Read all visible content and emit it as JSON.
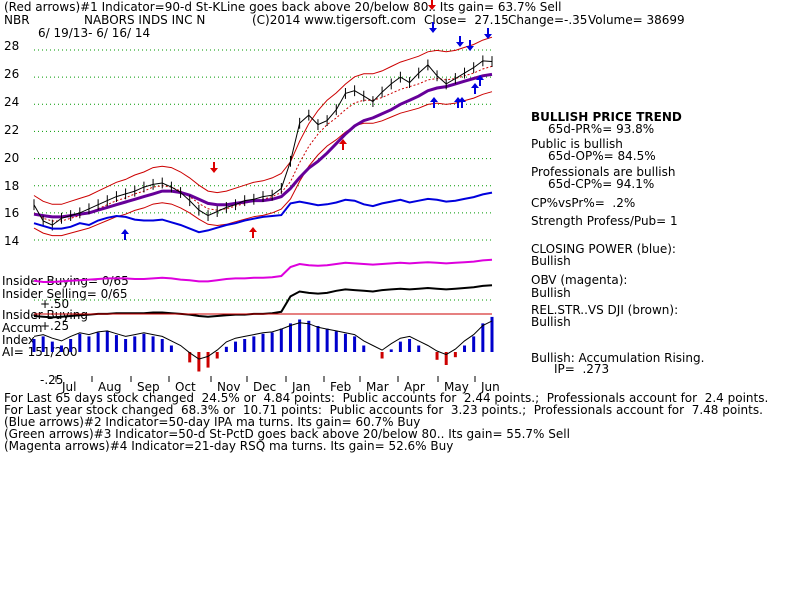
{
  "header": {
    "line1": "(Red arrows)#1 Indicator=90-d St-KLine goes back above 20/below 80.. Its gain= 63.7% Sell",
    "symbol": "NBR",
    "company": "NABORS INDS INC N",
    "copyright": "(C)2014 www.tigersoft.com",
    "close": "Close=  27.15",
    "change": "Change=-.35",
    "volume": "Volume= 38699",
    "daterange": "6/ 19/13- 6/ 16/ 14"
  },
  "chart_data": {
    "type": "line",
    "title": "NABORS INDS INC N",
    "x_months": [
      "Jul",
      "Aug",
      "Sep",
      "Oct",
      "Nov",
      "Dec",
      "Jan",
      "Feb",
      "Mar",
      "Apr",
      "May",
      "Jun"
    ],
    "ylim": [
      13,
      29
    ],
    "y_ticks": [
      "28",
      "26",
      "24",
      "22",
      "20",
      "18",
      "16",
      "14"
    ],
    "price_x": [
      0,
      5,
      10,
      15,
      20,
      25,
      30,
      35,
      40,
      45,
      50,
      55,
      60,
      65,
      70,
      75,
      80,
      85,
      90,
      95,
      100,
      105,
      110,
      115,
      120,
      125,
      130,
      135,
      140,
      145,
      150,
      155,
      160,
      165,
      170,
      175,
      180,
      185,
      190,
      195,
      200,
      205,
      210,
      215,
      220,
      225,
      230,
      235,
      240,
      245,
      250
    ],
    "price": [
      16.6,
      15.4,
      15.1,
      15.6,
      15.8,
      16.0,
      16.3,
      16.6,
      16.9,
      17.2,
      17.4,
      17.6,
      17.9,
      18.1,
      18.2,
      17.9,
      17.5,
      16.9,
      16.2,
      15.8,
      16.1,
      16.4,
      16.6,
      16.9,
      17.0,
      17.2,
      17.3,
      17.8,
      19.8,
      22.6,
      23.2,
      22.5,
      22.8,
      23.6,
      24.8,
      25.0,
      24.6,
      24.2,
      24.9,
      25.5,
      26.0,
      25.6,
      26.3,
      26.9,
      26.1,
      25.5,
      25.9,
      26.3,
      26.7,
      27.2,
      27.15
    ],
    "ma_50": [
      15.9,
      15.8,
      15.7,
      15.7,
      15.8,
      15.9,
      16.0,
      16.2,
      16.4,
      16.6,
      16.8,
      17.0,
      17.2,
      17.4,
      17.6,
      17.6,
      17.5,
      17.3,
      17.0,
      16.7,
      16.6,
      16.6,
      16.7,
      16.8,
      16.9,
      16.9,
      17.0,
      17.2,
      17.8,
      18.6,
      19.3,
      19.8,
      20.4,
      21.1,
      21.8,
      22.4,
      22.8,
      23.0,
      23.3,
      23.6,
      24.0,
      24.3,
      24.6,
      25.0,
      25.2,
      25.3,
      25.5,
      25.7,
      25.9,
      26.1,
      26.2
    ],
    "ma_21": [
      16.0,
      15.6,
      15.4,
      15.4,
      15.6,
      15.8,
      16.0,
      16.3,
      16.6,
      16.9,
      17.1,
      17.4,
      17.6,
      17.9,
      18.0,
      17.9,
      17.6,
      17.2,
      16.7,
      16.3,
      16.2,
      16.3,
      16.5,
      16.7,
      16.9,
      17.0,
      17.2,
      17.5,
      18.3,
      19.7,
      20.9,
      21.8,
      22.5,
      23.0,
      23.6,
      24.1,
      24.3,
      24.3,
      24.5,
      24.8,
      25.1,
      25.3,
      25.5,
      25.8,
      25.9,
      25.8,
      25.9,
      26.1,
      26.3,
      26.6,
      26.8
    ],
    "closing_power": [
      52,
      49,
      46,
      46,
      48,
      52,
      50,
      55,
      58,
      60,
      59,
      56,
      55,
      55,
      56,
      53,
      50,
      46,
      42,
      44,
      47,
      50,
      52,
      55,
      57,
      59,
      60,
      61,
      74,
      76,
      74,
      72,
      73,
      75,
      78,
      77,
      73,
      71,
      74,
      76,
      78,
      75,
      77,
      79,
      78,
      76,
      77,
      79,
      81,
      84,
      86
    ],
    "obv": [
      32,
      30,
      30,
      31,
      32,
      33,
      34,
      35,
      36,
      36,
      36,
      35,
      35,
      36,
      37,
      36,
      34,
      33,
      31,
      31,
      33,
      35,
      36,
      36,
      37,
      37,
      38,
      40,
      55,
      60,
      58,
      57,
      58,
      60,
      62,
      61,
      60,
      59,
      60,
      61,
      62,
      61,
      62,
      63,
      62,
      61,
      62,
      63,
      64,
      66,
      67
    ],
    "rel_str": [
      20,
      19,
      18,
      19,
      20,
      21,
      22,
      23,
      23,
      24,
      24,
      24,
      24,
      25,
      25,
      24,
      23,
      22,
      20,
      19,
      20,
      21,
      22,
      22,
      23,
      23,
      24,
      26,
      48,
      55,
      53,
      52,
      53,
      56,
      58,
      57,
      56,
      55,
      57,
      58,
      59,
      58,
      59,
      60,
      59,
      58,
      59,
      60,
      61,
      63,
      64
    ],
    "accum_labels": [
      "+.50",
      "+.25",
      "-.25"
    ],
    "accum_index": [
      0.1,
      0.12,
      0.08,
      0.05,
      0.1,
      0.14,
      0.12,
      0.15,
      0.16,
      0.13,
      0.1,
      0.12,
      0.14,
      0.12,
      0.1,
      0.05,
      0.0,
      -0.08,
      -0.15,
      -0.12,
      -0.05,
      0.04,
      0.08,
      0.1,
      0.12,
      0.14,
      0.15,
      0.18,
      0.22,
      0.25,
      0.24,
      0.2,
      0.18,
      0.16,
      0.14,
      0.12,
      0.05,
      0.0,
      -0.05,
      0.02,
      0.08,
      0.1,
      0.05,
      0.0,
      -0.06,
      -0.1,
      -0.04,
      0.05,
      0.12,
      0.22,
      0.27
    ]
  },
  "insider": {
    "buying": "Insider Buying= 0/65",
    "selling": "Insider Selling= 0/65",
    "buying2": "Insider Buying",
    "accum": "Accum",
    "index": "Index",
    "ai": "AI= 151/200"
  },
  "right_panel": {
    "trend_title": "BULLISH PRICE TREND",
    "trend_val": "65d-PR%= 93.8%",
    "public_title": "Public is bullish",
    "public_val": "65d-OP%= 84.5%",
    "pro_title": "Professionals are bullish",
    "pro_val": "65d-CP%= 94.1%",
    "cpvspr": "CP%vsPr%=  .2%",
    "strength": "Strength Profess/Pub= 1",
    "cp_title": "CLOSING POWER (blue):",
    "cp_val": "Bullish",
    "obv_title": "OBV (magenta):",
    "obv_val": "Bullish",
    "rel_title": "REL.STR..VS DJI (brown):",
    "rel_val": "Bullish",
    "accum_title": "Bullish: Accumulation Rising.",
    "ip": "IP=  .273"
  },
  "footer": {
    "l1": "For Last 65 days stock changed  24.5% or  4.84 points:  Public accounts for  2.44 points.;  Professionals account for  2.4 points.",
    "l2": "For Last year stock changed  68.3% or  10.71 points:  Public accounts for  3.23 points.;  Professionals account for  7.48 points.",
    "l3": "(Blue arrows)#2 Indicator=50-day IPA ma turns. Its gain= 60.7% Buy",
    "l4": "(Green arrows)#3 Indicator=50-d St-PctD goes back above 20/below 80.. Its gain= 55.7% Sell",
    "l5": "(Magenta arrows)#4 Indicator=21-day RSQ ma turns. Its gain= 52.6% Buy"
  },
  "colors": {
    "price": "#000000",
    "bands": "#cc0000",
    "ma50": "#660099",
    "closing_power": "#0000dd",
    "obv": "#dd00dd",
    "rel_str": "#000000",
    "grid": "#009900",
    "accum_pos": "#0000cc",
    "accum_neg": "#cc0000"
  }
}
